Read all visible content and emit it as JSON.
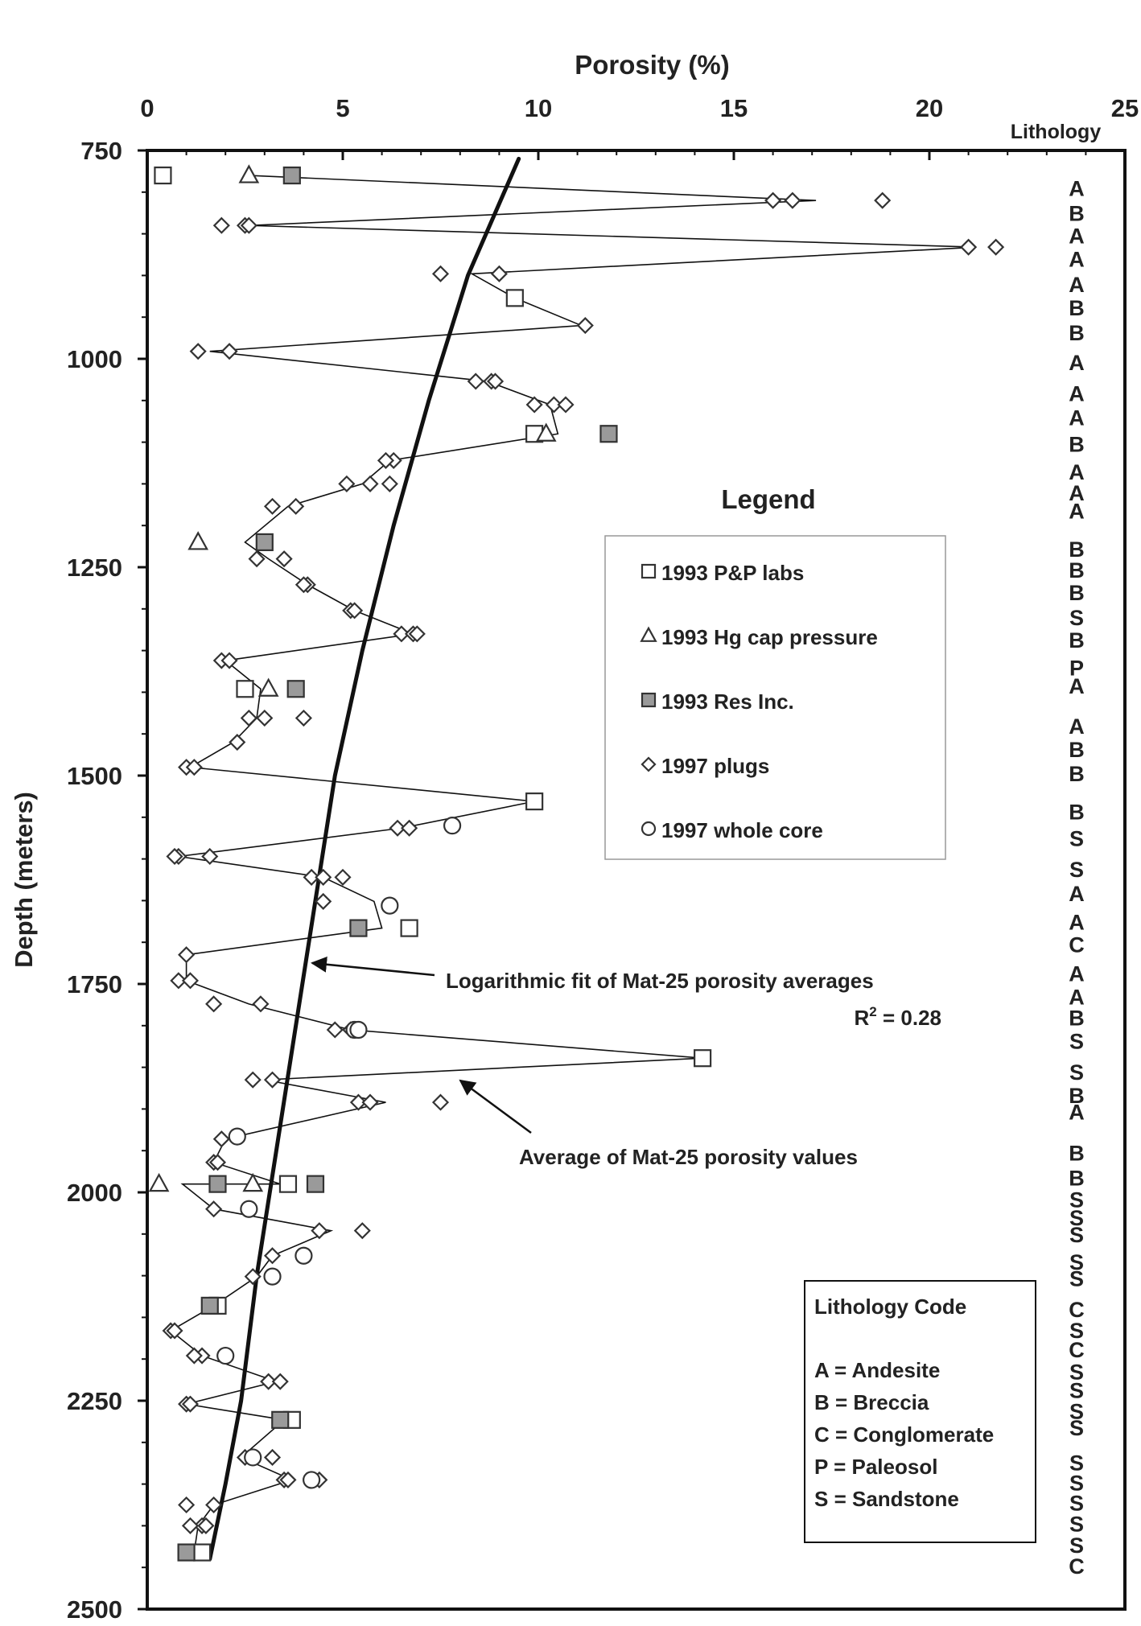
{
  "chart_data": {
    "type": "scatter",
    "x_axis": {
      "title": "Porosity (%)",
      "min": 0,
      "max": 25,
      "ticks": [
        "0",
        "5",
        "10",
        "15",
        "20",
        "25"
      ],
      "position": "top"
    },
    "y_axis": {
      "title": "Depth (meters)",
      "min": 750,
      "max": 2500,
      "inverted": true,
      "ticks": [
        "750",
        "1000",
        "1250",
        "1500",
        "1750",
        "2000",
        "2250",
        "2500"
      ]
    },
    "lithology_header": "Lithology",
    "lithology": [
      {
        "depth": 795,
        "code": "A"
      },
      {
        "depth": 825,
        "code": "B"
      },
      {
        "depth": 852,
        "code": "A"
      },
      {
        "depth": 880,
        "code": "A"
      },
      {
        "depth": 910,
        "code": "A"
      },
      {
        "depth": 938,
        "code": "B"
      },
      {
        "depth": 968,
        "code": "B"
      },
      {
        "depth": 1004,
        "code": "A"
      },
      {
        "depth": 1041,
        "code": "A"
      },
      {
        "depth": 1070,
        "code": "A"
      },
      {
        "depth": 1102,
        "code": "B"
      },
      {
        "depth": 1135,
        "code": "A"
      },
      {
        "depth": 1160,
        "code": "A"
      },
      {
        "depth": 1182,
        "code": "A"
      },
      {
        "depth": 1228,
        "code": "B"
      },
      {
        "depth": 1253,
        "code": "B"
      },
      {
        "depth": 1280,
        "code": "B"
      },
      {
        "depth": 1310,
        "code": "S"
      },
      {
        "depth": 1337,
        "code": "B"
      },
      {
        "depth": 1370,
        "code": "P"
      },
      {
        "depth": 1392,
        "code": "A"
      },
      {
        "depth": 1440,
        "code": "A"
      },
      {
        "depth": 1468,
        "code": "B"
      },
      {
        "depth": 1497,
        "code": "B"
      },
      {
        "depth": 1543,
        "code": "B"
      },
      {
        "depth": 1575,
        "code": "S"
      },
      {
        "depth": 1612,
        "code": "S"
      },
      {
        "depth": 1641,
        "code": "A"
      },
      {
        "depth": 1675,
        "code": "A"
      },
      {
        "depth": 1702,
        "code": "C"
      },
      {
        "depth": 1737,
        "code": "A"
      },
      {
        "depth": 1765,
        "code": "A"
      },
      {
        "depth": 1790,
        "code": "B"
      },
      {
        "depth": 1818,
        "code": "S"
      },
      {
        "depth": 1855,
        "code": "S"
      },
      {
        "depth": 1883,
        "code": "B"
      },
      {
        "depth": 1903,
        "code": "A"
      },
      {
        "depth": 1952,
        "code": "B"
      },
      {
        "depth": 1982,
        "code": "B"
      },
      {
        "depth": 2008,
        "code": "S"
      },
      {
        "depth": 2030,
        "code": "S"
      },
      {
        "depth": 2050,
        "code": "S"
      },
      {
        "depth": 2083,
        "code": "S"
      },
      {
        "depth": 2103,
        "code": "S"
      },
      {
        "depth": 2140,
        "code": "C"
      },
      {
        "depth": 2165,
        "code": "S"
      },
      {
        "depth": 2188,
        "code": "C"
      },
      {
        "depth": 2215,
        "code": "S"
      },
      {
        "depth": 2237,
        "code": "S"
      },
      {
        "depth": 2262,
        "code": "S"
      },
      {
        "depth": 2282,
        "code": "S"
      },
      {
        "depth": 2324,
        "code": "S"
      },
      {
        "depth": 2348,
        "code": "S"
      },
      {
        "depth": 2372,
        "code": "S"
      },
      {
        "depth": 2397,
        "code": "S"
      },
      {
        "depth": 2423,
        "code": "S"
      },
      {
        "depth": 2448,
        "code": "C"
      }
    ],
    "series": [
      {
        "name": "1993 P&P labs",
        "marker": "square-open",
        "points": [
          [
            0.4,
            780
          ],
          [
            9.4,
            927
          ],
          [
            9.9,
            1090
          ],
          [
            2.5,
            1396
          ],
          [
            9.9,
            1531
          ],
          [
            6.7,
            1683
          ],
          [
            14.2,
            1839
          ],
          [
            3.6,
            1990
          ],
          [
            1.8,
            2136
          ],
          [
            3.7,
            2273
          ],
          [
            1.4,
            2432
          ]
        ]
      },
      {
        "name": "1993 Hg cap pressure",
        "marker": "triangle-open",
        "points": [
          [
            2.6,
            780
          ],
          [
            10.2,
            1090
          ],
          [
            1.3,
            1220
          ],
          [
            3.1,
            1396
          ],
          [
            0.3,
            1990
          ],
          [
            2.7,
            1990
          ]
        ]
      },
      {
        "name": "1993 Res Inc.",
        "marker": "square-filled",
        "color": "#9a9a9a",
        "points": [
          [
            3.7,
            780
          ],
          [
            11.8,
            1090
          ],
          [
            3.0,
            1220
          ],
          [
            3.8,
            1396
          ],
          [
            5.4,
            1683
          ],
          [
            1.8,
            1990
          ],
          [
            4.3,
            1990
          ],
          [
            1.6,
            2136
          ],
          [
            3.4,
            2273
          ],
          [
            1.0,
            2432
          ]
        ]
      },
      {
        "name": "1997 plugs",
        "marker": "diamond-open",
        "points": [
          [
            16.0,
            810
          ],
          [
            16.5,
            810
          ],
          [
            18.8,
            810
          ],
          [
            1.9,
            840
          ],
          [
            2.5,
            840
          ],
          [
            2.6,
            840
          ],
          [
            21.0,
            866
          ],
          [
            21.7,
            866
          ],
          [
            7.5,
            898
          ],
          [
            9.0,
            898
          ],
          [
            11.2,
            960
          ],
          [
            1.3,
            991
          ],
          [
            2.1,
            991
          ],
          [
            8.4,
            1027
          ],
          [
            8.8,
            1027
          ],
          [
            8.9,
            1027
          ],
          [
            9.9,
            1055
          ],
          [
            10.4,
            1055
          ],
          [
            10.7,
            1055
          ],
          [
            6.3,
            1122
          ],
          [
            6.1,
            1122
          ],
          [
            5.1,
            1150
          ],
          [
            5.7,
            1150
          ],
          [
            6.2,
            1150
          ],
          [
            3.2,
            1177
          ],
          [
            3.8,
            1177
          ],
          [
            2.8,
            1240
          ],
          [
            3.5,
            1240
          ],
          [
            4.1,
            1271
          ],
          [
            4.0,
            1271
          ],
          [
            5.2,
            1302
          ],
          [
            5.3,
            1302
          ],
          [
            6.5,
            1330
          ],
          [
            6.8,
            1330
          ],
          [
            6.9,
            1330
          ],
          [
            1.9,
            1362
          ],
          [
            2.1,
            1362
          ],
          [
            2.6,
            1431
          ],
          [
            3.0,
            1431
          ],
          [
            4.0,
            1431
          ],
          [
            2.3,
            1460
          ],
          [
            1.0,
            1490
          ],
          [
            1.2,
            1490
          ],
          [
            6.4,
            1563
          ],
          [
            6.7,
            1563
          ],
          [
            0.8,
            1597
          ],
          [
            0.7,
            1597
          ],
          [
            1.6,
            1597
          ],
          [
            4.2,
            1622
          ],
          [
            4.5,
            1622
          ],
          [
            5.0,
            1622
          ],
          [
            4.5,
            1651
          ],
          [
            1.0,
            1715
          ],
          [
            0.8,
            1746
          ],
          [
            1.1,
            1746
          ],
          [
            1.7,
            1774
          ],
          [
            2.9,
            1774
          ],
          [
            4.8,
            1805
          ],
          [
            5.2,
            1805
          ],
          [
            2.7,
            1865
          ],
          [
            3.2,
            1865
          ],
          [
            5.4,
            1892
          ],
          [
            5.7,
            1892
          ],
          [
            7.5,
            1892
          ],
          [
            1.9,
            1936
          ],
          [
            1.7,
            1964
          ],
          [
            1.8,
            1964
          ],
          [
            1.7,
            2020
          ],
          [
            4.4,
            2046
          ],
          [
            5.5,
            2046
          ],
          [
            3.2,
            2076
          ],
          [
            2.7,
            2101
          ],
          [
            0.6,
            2166
          ],
          [
            0.7,
            2166
          ],
          [
            1.4,
            2196
          ],
          [
            1.2,
            2196
          ],
          [
            3.1,
            2227
          ],
          [
            3.4,
            2227
          ],
          [
            1.0,
            2254
          ],
          [
            1.1,
            2254
          ],
          [
            2.5,
            2318
          ],
          [
            3.2,
            2318
          ],
          [
            3.5,
            2345
          ],
          [
            3.6,
            2345
          ],
          [
            4.4,
            2345
          ],
          [
            1.0,
            2375
          ],
          [
            1.7,
            2375
          ],
          [
            1.4,
            2400
          ],
          [
            1.5,
            2400
          ],
          [
            1.1,
            2400
          ]
        ]
      },
      {
        "name": "1997 whole core",
        "marker": "circle-open",
        "points": [
          [
            7.8,
            1560
          ],
          [
            6.2,
            1656
          ],
          [
            5.3,
            1805
          ],
          [
            5.4,
            1805
          ],
          [
            2.3,
            1933
          ],
          [
            2.6,
            2020
          ],
          [
            4.0,
            2076
          ],
          [
            3.2,
            2101
          ],
          [
            2.0,
            2196
          ],
          [
            2.7,
            2318
          ],
          [
            4.2,
            2345
          ]
        ]
      }
    ],
    "average_line": {
      "name": "Average of Mat-25 porosity values",
      "points": [
        [
          2.6,
          780
        ],
        [
          17.1,
          810
        ],
        [
          2.6,
          840
        ],
        [
          21.2,
          866
        ],
        [
          8.3,
          898
        ],
        [
          9.4,
          927
        ],
        [
          11.1,
          960
        ],
        [
          1.6,
          991
        ],
        [
          8.7,
          1027
        ],
        [
          10.3,
          1055
        ],
        [
          10.5,
          1090
        ],
        [
          6.2,
          1122
        ],
        [
          5.5,
          1150
        ],
        [
          3.6,
          1177
        ],
        [
          2.5,
          1220
        ],
        [
          3.1,
          1240
        ],
        [
          4.1,
          1271
        ],
        [
          5.3,
          1302
        ],
        [
          6.8,
          1330
        ],
        [
          2.0,
          1362
        ],
        [
          2.9,
          1396
        ],
        [
          2.8,
          1431
        ],
        [
          2.2,
          1460
        ],
        [
          1.1,
          1490
        ],
        [
          9.9,
          1531
        ],
        [
          6.5,
          1563
        ],
        [
          0.8,
          1597
        ],
        [
          4.5,
          1622
        ],
        [
          5.8,
          1651
        ],
        [
          6.0,
          1683
        ],
        [
          1.0,
          1715
        ],
        [
          1.0,
          1746
        ],
        [
          2.6,
          1774
        ],
        [
          5.2,
          1805
        ],
        [
          14.2,
          1839
        ],
        [
          3.0,
          1865
        ],
        [
          6.1,
          1892
        ],
        [
          2.0,
          1936
        ],
        [
          1.7,
          1964
        ],
        [
          3.4,
          1990
        ],
        [
          0.9,
          1990
        ],
        [
          1.7,
          2020
        ],
        [
          4.7,
          2046
        ],
        [
          3.2,
          2076
        ],
        [
          2.8,
          2101
        ],
        [
          1.7,
          2136
        ],
        [
          0.6,
          2166
        ],
        [
          1.4,
          2196
        ],
        [
          3.3,
          2227
        ],
        [
          1.0,
          2254
        ],
        [
          3.5,
          2273
        ],
        [
          2.4,
          2318
        ],
        [
          3.7,
          2345
        ],
        [
          1.7,
          2375
        ],
        [
          1.3,
          2400
        ],
        [
          1.2,
          2432
        ]
      ]
    },
    "fit_curve": {
      "name": "Logarithmic fit of Mat-25 porosity averages",
      "r2_label": "R",
      "r2_sup": "2",
      "r2_value": " = 0.28",
      "points": [
        [
          9.5,
          760
        ],
        [
          8.2,
          900
        ],
        [
          7.2,
          1050
        ],
        [
          6.3,
          1200
        ],
        [
          5.5,
          1350
        ],
        [
          4.8,
          1500
        ],
        [
          4.3,
          1650
        ],
        [
          3.8,
          1800
        ],
        [
          3.3,
          1950
        ],
        [
          2.8,
          2100
        ],
        [
          2.4,
          2250
        ],
        [
          2.0,
          2350
        ],
        [
          1.6,
          2440
        ]
      ]
    },
    "legend": {
      "title": "Legend",
      "placement": "center-right",
      "items": [
        "1993 P&P labs",
        "1993 Hg cap pressure",
        "1993 Res Inc.",
        "1997 plugs",
        "1997 whole core"
      ]
    },
    "lithology_code": {
      "title": "Lithology Code",
      "placement": "bottom-right",
      "items": [
        "A = Andesite",
        "B = Breccia",
        "C = Conglomerate",
        "P = Paleosol",
        "S = Sandstone"
      ]
    },
    "grid": false
  }
}
